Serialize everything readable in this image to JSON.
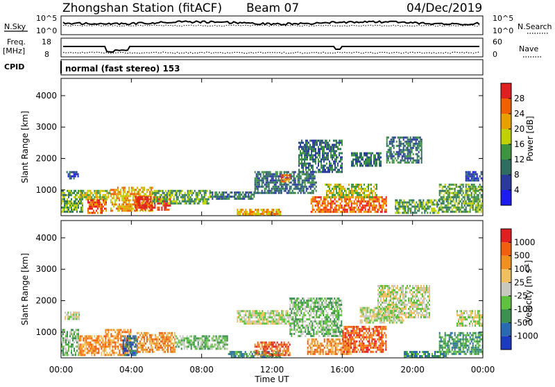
{
  "header": {
    "station": "Zhongshan Station (fitACF)",
    "beam": "Beam 07",
    "date": "04/Dec/2019"
  },
  "top_panels": {
    "nsky_label": "N.Sky",
    "nsky_ticks": [
      "10^5",
      "10^0"
    ],
    "nsearch_label": "N.Search",
    "nsearch_ticks": [
      "10^5",
      "10^0"
    ],
    "freq_label": "Freq.",
    "freq_unit": "[MHz]",
    "freq_ticks": [
      "18",
      "8"
    ],
    "nave_label": "Nave",
    "nave_ticks": [
      "60",
      "0"
    ],
    "cpid_label": "CPID",
    "cpid_text": "normal (fast stereo) 153"
  },
  "chart_data": [
    {
      "type": "heatmap",
      "name": "power",
      "ylabel": "Slant Range [km]",
      "yticks": [
        1000,
        2000,
        3000,
        4000
      ],
      "ylim": [
        180,
        4550
      ],
      "xlim": [
        0,
        24
      ],
      "colorbar": {
        "label": "Power [dB]",
        "ticks": [
          4,
          8,
          12,
          16,
          20,
          24,
          28
        ],
        "colors": [
          "#1c1cf0",
          "#2a3a9c",
          "#2e6e60",
          "#3e9440",
          "#c0d000",
          "#e8a000",
          "#f06000",
          "#e02020"
        ]
      },
      "regions": [
        {
          "t0": 0.0,
          "t1": 1.2,
          "r0": 300,
          "r1": 1000,
          "level": 3
        },
        {
          "t0": 0.3,
          "t1": 1.0,
          "r0": 1350,
          "r1": 1600,
          "level": 1
        },
        {
          "t0": 1.0,
          "t1": 2.8,
          "r0": 700,
          "r1": 1000,
          "level": 4
        },
        {
          "t0": 1.5,
          "t1": 2.6,
          "r0": 300,
          "r1": 700,
          "level": 6
        },
        {
          "t0": 2.8,
          "t1": 5.2,
          "r0": 350,
          "r1": 1100,
          "level": 5
        },
        {
          "t0": 4.2,
          "t1": 6.2,
          "r0": 350,
          "r1": 800,
          "level": 7
        },
        {
          "t0": 5.2,
          "t1": 8.5,
          "r0": 600,
          "r1": 1000,
          "level": 3
        },
        {
          "t0": 8.5,
          "t1": 11.0,
          "r0": 700,
          "r1": 950,
          "level": 2
        },
        {
          "t0": 10.0,
          "t1": 12.5,
          "r0": 200,
          "r1": 400,
          "level": 5
        },
        {
          "t0": 11.0,
          "t1": 14.5,
          "r0": 900,
          "r1": 1600,
          "level": 2
        },
        {
          "t0": 12.5,
          "t1": 13.0,
          "r0": 1300,
          "r1": 1500,
          "level": 6
        },
        {
          "t0": 13.5,
          "t1": 16.0,
          "r0": 1600,
          "r1": 2600,
          "level": 2
        },
        {
          "t0": 14.2,
          "t1": 18.5,
          "r0": 300,
          "r1": 800,
          "level": 6
        },
        {
          "t0": 15.0,
          "t1": 18.0,
          "r0": 800,
          "r1": 1200,
          "level": 4
        },
        {
          "t0": 16.5,
          "t1": 18.2,
          "r0": 1800,
          "r1": 2200,
          "level": 2
        },
        {
          "t0": 18.5,
          "t1": 20.5,
          "r0": 1900,
          "r1": 2700,
          "level": 2
        },
        {
          "t0": 19.0,
          "t1": 21.5,
          "r0": 300,
          "r1": 700,
          "level": 3
        },
        {
          "t0": 21.5,
          "t1": 24.0,
          "r0": 300,
          "r1": 1200,
          "level": 3
        },
        {
          "t0": 23.0,
          "t1": 24.0,
          "r0": 1300,
          "r1": 1600,
          "level": 1
        }
      ]
    },
    {
      "type": "heatmap",
      "name": "velocity",
      "ylabel": "Slant Range [km]",
      "yticks": [
        1000,
        2000,
        3000,
        4000
      ],
      "ylim": [
        180,
        4550
      ],
      "xlim": [
        0,
        24
      ],
      "colorbar": {
        "label": "Velocity [m s^-1]",
        "ticks": [
          1000,
          500,
          100,
          25,
          -25,
          -100,
          -500,
          -1000
        ],
        "colors": [
          "#1c3cc0",
          "#2a6ab0",
          "#3c9050",
          "#60c040",
          "#c8c8c0",
          "#f0c060",
          "#f09020",
          "#f06010",
          "#e02020"
        ]
      },
      "regions": [
        {
          "t0": 0.0,
          "t1": 1.0,
          "r0": 300,
          "r1": 1100,
          "level": 3
        },
        {
          "t0": 0.2,
          "t1": 1.0,
          "r0": 1400,
          "r1": 1650,
          "level": 4
        },
        {
          "t0": 1.0,
          "t1": 2.5,
          "r0": 300,
          "r1": 900,
          "level": 6
        },
        {
          "t0": 2.5,
          "t1": 4.0,
          "r0": 300,
          "r1": 1100,
          "level": 6
        },
        {
          "t0": 3.5,
          "t1": 4.3,
          "r0": 300,
          "r1": 900,
          "level": 1
        },
        {
          "t0": 4.3,
          "t1": 6.5,
          "r0": 350,
          "r1": 1000,
          "level": 6
        },
        {
          "t0": 6.5,
          "t1": 9.5,
          "r0": 500,
          "r1": 900,
          "level": 3
        },
        {
          "t0": 9.5,
          "t1": 12.5,
          "r0": 200,
          "r1": 400,
          "level": 2
        },
        {
          "t0": 10.0,
          "t1": 13.0,
          "r0": 1300,
          "r1": 1700,
          "level": 4
        },
        {
          "t0": 11.0,
          "t1": 13.0,
          "r0": 300,
          "r1": 700,
          "level": 7
        },
        {
          "t0": 13.0,
          "t1": 16.0,
          "r0": 900,
          "r1": 2100,
          "level": 3
        },
        {
          "t0": 14.0,
          "t1": 16.5,
          "r0": 300,
          "r1": 800,
          "level": 6
        },
        {
          "t0": 16.0,
          "t1": 18.5,
          "r0": 400,
          "r1": 1200,
          "level": 7
        },
        {
          "t0": 17.0,
          "t1": 19.5,
          "r0": 1300,
          "r1": 1800,
          "level": 4
        },
        {
          "t0": 18.0,
          "t1": 21.0,
          "r0": 1500,
          "r1": 2500,
          "level": 4
        },
        {
          "t0": 19.5,
          "t1": 22.0,
          "r0": 200,
          "r1": 400,
          "level": 2
        },
        {
          "t0": 21.5,
          "t1": 24.0,
          "r0": 300,
          "r1": 1000,
          "level": 2
        },
        {
          "t0": 22.5,
          "t1": 24.0,
          "r0": 1200,
          "r1": 1700,
          "level": 4
        }
      ]
    }
  ],
  "xaxis": {
    "ticks": [
      "00:00",
      "04:00",
      "08:00",
      "12:00",
      "16:00",
      "20:00",
      "00:00"
    ],
    "label": "Time UT"
  }
}
